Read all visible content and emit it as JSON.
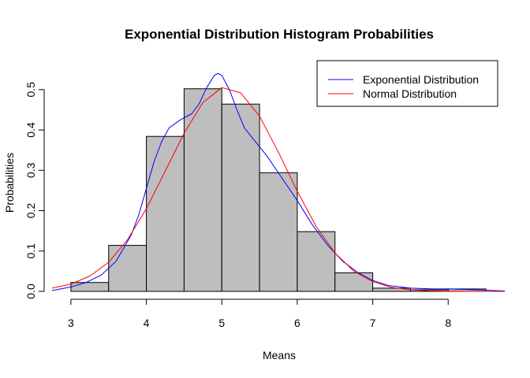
{
  "chart_data": {
    "type": "bar",
    "title": "Exponential Distribution Histogram Probabilities",
    "xlabel": "Means",
    "ylabel": "Probabilities",
    "xlim": [
      2.75,
      8.75
    ],
    "ylim": [
      0,
      0.56
    ],
    "x_ticks": [
      "3",
      "4",
      "5",
      "6",
      "7",
      "8"
    ],
    "y_ticks": [
      "0.0",
      "0.1",
      "0.2",
      "0.3",
      "0.4",
      "0.5"
    ],
    "bins": [
      {
        "x0": 3.0,
        "x1": 3.5,
        "value": 0.022
      },
      {
        "x0": 3.5,
        "x1": 4.0,
        "value": 0.114
      },
      {
        "x0": 4.0,
        "x1": 4.5,
        "value": 0.384
      },
      {
        "x0": 4.5,
        "x1": 5.0,
        "value": 0.502
      },
      {
        "x0": 5.0,
        "x1": 5.5,
        "value": 0.464
      },
      {
        "x0": 5.5,
        "x1": 6.0,
        "value": 0.294
      },
      {
        "x0": 6.0,
        "x1": 6.5,
        "value": 0.148
      },
      {
        "x0": 6.5,
        "x1": 7.0,
        "value": 0.046
      },
      {
        "x0": 7.0,
        "x1": 7.5,
        "value": 0.008
      },
      {
        "x0": 7.5,
        "x1": 8.0,
        "value": 0.004
      },
      {
        "x0": 8.0,
        "x1": 8.5,
        "value": 0.006
      }
    ],
    "bar_color": "#bebebe",
    "series": [
      {
        "name": "Exponential Distribution",
        "color": "#0000ff",
        "x": [
          2.75,
          3.0,
          3.2,
          3.4,
          3.6,
          3.8,
          3.9,
          4.0,
          4.1,
          4.2,
          4.3,
          4.45,
          4.6,
          4.7,
          4.8,
          4.9,
          4.95,
          5.0,
          5.1,
          5.2,
          5.3,
          5.45,
          5.6,
          5.8,
          6.0,
          6.2,
          6.4,
          6.6,
          6.8,
          7.0,
          7.2,
          7.5,
          7.8,
          8.0,
          8.2,
          8.5,
          8.75
        ],
        "y": [
          0.002,
          0.011,
          0.022,
          0.04,
          0.075,
          0.14,
          0.19,
          0.255,
          0.32,
          0.37,
          0.405,
          0.425,
          0.44,
          0.465,
          0.505,
          0.535,
          0.54,
          0.535,
          0.5,
          0.45,
          0.405,
          0.37,
          0.335,
          0.28,
          0.225,
          0.165,
          0.115,
          0.075,
          0.047,
          0.027,
          0.015,
          0.008,
          0.006,
          0.006,
          0.005,
          0.003,
          0.001
        ]
      },
      {
        "name": "Normal Distribution",
        "color": "#ff0000",
        "x": [
          2.75,
          3.0,
          3.25,
          3.5,
          3.75,
          4.0,
          4.25,
          4.5,
          4.75,
          5.0,
          5.25,
          5.5,
          5.75,
          6.0,
          6.25,
          6.5,
          6.75,
          7.0,
          7.25,
          7.5,
          7.75,
          8.0,
          8.25,
          8.5,
          8.75
        ],
        "y": [
          0.008,
          0.018,
          0.038,
          0.072,
          0.128,
          0.205,
          0.298,
          0.392,
          0.468,
          0.505,
          0.492,
          0.434,
          0.345,
          0.248,
          0.161,
          0.095,
          0.05,
          0.024,
          0.01,
          0.004,
          0.0015,
          0.0005,
          0.0001,
          0.0,
          0.0
        ]
      }
    ],
    "legend_position": "top-right",
    "grid": false
  }
}
